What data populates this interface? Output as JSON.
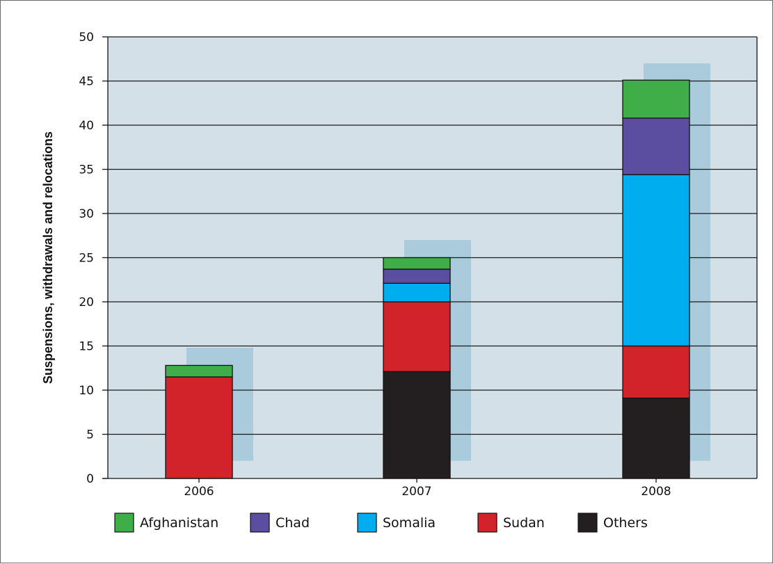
{
  "chart_data": {
    "type": "bar",
    "stacked": true,
    "title": "",
    "xlabel": "",
    "ylabel": "Suspensions, withdrawals and relocations",
    "ylim": [
      0,
      50
    ],
    "yticks": [
      0,
      5,
      10,
      15,
      20,
      25,
      30,
      35,
      40,
      45,
      50
    ],
    "grid": true,
    "legend_position": "bottom",
    "plot_background": "#d3e0e8",
    "categories": [
      "2006",
      "2007",
      "2008"
    ],
    "series": [
      {
        "name": "Others",
        "color": "#231f20",
        "values": [
          0,
          12.1,
          9.1
        ]
      },
      {
        "name": "Sudan",
        "color": "#d2232a",
        "values": [
          11.5,
          7.9,
          5.9
        ]
      },
      {
        "name": "Somalia",
        "color": "#00aeef",
        "values": [
          0,
          2.1,
          19.4
        ]
      },
      {
        "name": "Chad",
        "color": "#5b4ea0",
        "values": [
          0,
          1.6,
          6.4
        ]
      },
      {
        "name": "Afghanistan",
        "color": "#3fae49",
        "values": [
          1.3,
          1.3,
          4.3
        ]
      }
    ],
    "shadow_bars": {
      "color": "#a9cbdc",
      "ranges": [
        [
          2,
          14.8
        ],
        [
          2,
          27
        ],
        [
          2,
          47
        ]
      ]
    },
    "legend_order": [
      "Afghanistan",
      "Chad",
      "Somalia",
      "Sudan",
      "Others"
    ]
  }
}
